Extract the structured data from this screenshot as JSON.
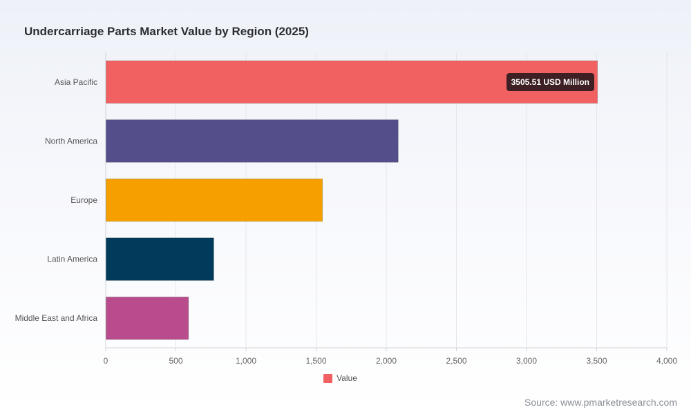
{
  "chart_data": {
    "type": "bar",
    "orientation": "horizontal",
    "title": "Undercarriage Parts Market Value by Region (2025)",
    "categories": [
      "Asia Pacific",
      "North America",
      "Europe",
      "Latin America",
      "Middle East and Africa"
    ],
    "series": [
      {
        "name": "Value",
        "values": [
          3505.51,
          2085,
          1545,
          770,
          590
        ],
        "colors": [
          "#f26161",
          "#544e8a",
          "#f5a000",
          "#003b5c",
          "#b84c8c"
        ]
      }
    ],
    "xlim": [
      0,
      4000
    ],
    "x_ticks": [
      0,
      500,
      1000,
      1500,
      2000,
      2500,
      3000,
      3500,
      4000
    ],
    "x_tick_labels": [
      "0",
      "500",
      "1,000",
      "1,500",
      "2,000",
      "2,500",
      "3,000",
      "3,500",
      "4,000"
    ],
    "grid": true,
    "legend_position": "bottom-center",
    "legend_color": "#f26161",
    "tooltip": {
      "category": "Asia Pacific",
      "text": "3505.51 USD Million"
    }
  },
  "source": "Source: www.pmarketresearch.com"
}
